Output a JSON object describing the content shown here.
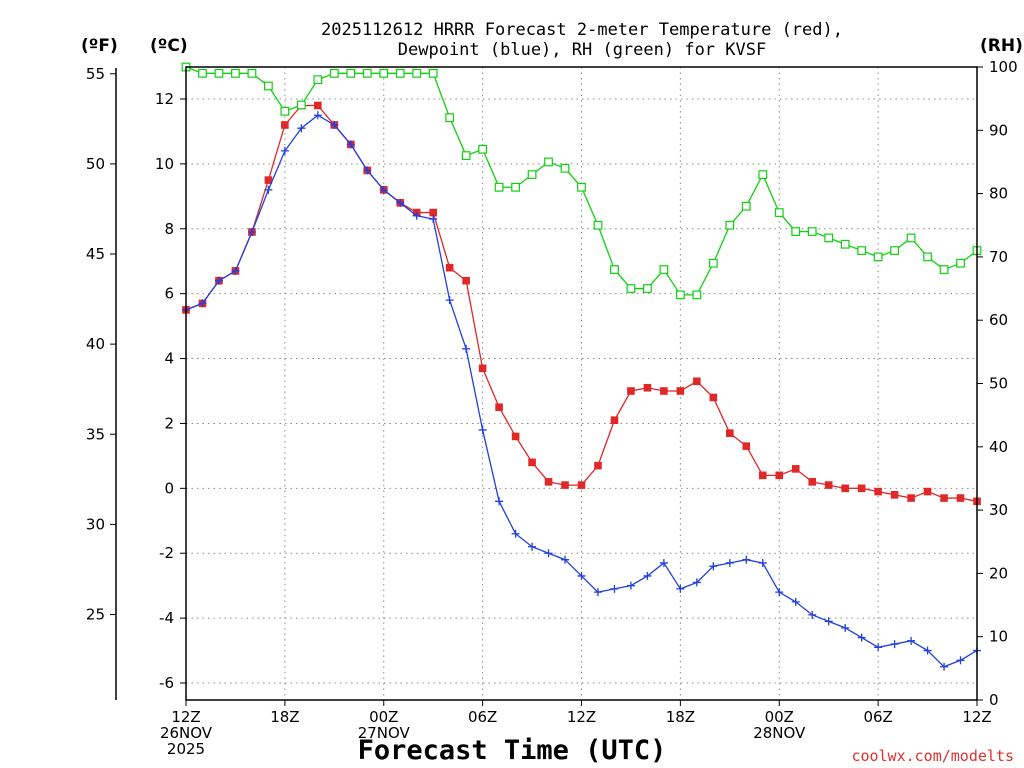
{
  "chart_data": {
    "type": "line",
    "title_line1": "2025112612 HRRR Forecast 2-meter Temperature (red),",
    "title_line2": "Dewpoint (blue), RH (green) for KVSF",
    "xlabel": "Forecast Time (UTC)",
    "credit": "coolwx.com/modelts",
    "left_axis_f_label": "(ºF)",
    "left_axis_c_label": "(ºC)",
    "right_axis_label": "(RH)",
    "x_hours_range": [
      0,
      48
    ],
    "x_ticks": [
      {
        "hour": 0,
        "lines": [
          "12Z",
          "26NOV",
          "2025"
        ]
      },
      {
        "hour": 6,
        "lines": [
          "18Z"
        ]
      },
      {
        "hour": 12,
        "lines": [
          "00Z",
          "27NOV"
        ]
      },
      {
        "hour": 18,
        "lines": [
          "06Z"
        ]
      },
      {
        "hour": 24,
        "lines": [
          "12Z"
        ]
      },
      {
        "hour": 30,
        "lines": [
          "18Z"
        ]
      },
      {
        "hour": 36,
        "lines": [
          "00Z",
          "28NOV"
        ]
      },
      {
        "hour": 42,
        "lines": [
          "06Z"
        ]
      },
      {
        "hour": 48,
        "lines": [
          "12Z"
        ]
      }
    ],
    "celsius_range": [
      -6.4,
      13.0
    ],
    "celsius_ticks": [
      "-6",
      "-4",
      "-2",
      "0",
      "2",
      "4",
      "6",
      "8",
      "10",
      "12"
    ],
    "fahrenheit_ticks": [
      "25",
      "30",
      "35",
      "40",
      "45",
      "50",
      "55"
    ],
    "rh_range": [
      0,
      100
    ],
    "rh_ticks": [
      "0",
      "10",
      "20",
      "30",
      "40",
      "50",
      "60",
      "70",
      "80",
      "90",
      "100"
    ],
    "series": [
      {
        "name": "Temperature",
        "unit": "C",
        "color": "#e02828",
        "marker": "square-filled",
        "values": [
          5.5,
          5.7,
          6.4,
          6.7,
          7.9,
          9.5,
          11.2,
          11.8,
          11.8,
          11.2,
          10.6,
          9.8,
          9.2,
          8.8,
          8.5,
          8.5,
          6.8,
          6.4,
          3.7,
          2.5,
          1.6,
          0.8,
          0.2,
          0.1,
          0.1,
          0.7,
          2.1,
          3.0,
          3.1,
          3.0,
          3.0,
          3.3,
          2.8,
          1.7,
          1.3,
          0.4,
          0.4,
          0.6,
          0.2,
          0.1,
          0.0,
          0.0,
          -0.1,
          -0.2,
          -0.3,
          -0.1,
          -0.3,
          -0.3,
          -0.4
        ]
      },
      {
        "name": "Dewpoint",
        "unit": "C",
        "color": "#2040e0",
        "marker": "plus",
        "values": [
          5.5,
          5.7,
          6.4,
          6.7,
          7.9,
          9.2,
          10.4,
          11.1,
          11.5,
          11.2,
          10.6,
          9.8,
          9.2,
          8.8,
          8.4,
          8.3,
          5.8,
          4.3,
          1.8,
          -0.4,
          -1.4,
          -1.8,
          -2.0,
          -2.2,
          -2.7,
          -3.2,
          -3.1,
          -3.0,
          -2.7,
          -2.3,
          -3.1,
          -2.9,
          -2.4,
          -2.3,
          -2.2,
          -2.3,
          -3.2,
          -3.5,
          -3.9,
          -4.1,
          -4.3,
          -4.6,
          -4.9,
          -4.8,
          -4.7,
          -5.0,
          -5.5,
          -5.3,
          -5.0
        ]
      },
      {
        "name": "RH",
        "unit": "%",
        "color": "#10d010",
        "marker": "square-open",
        "values": [
          100,
          99,
          99,
          99,
          99,
          97,
          93,
          94,
          98,
          99,
          99,
          99,
          99,
          99,
          99,
          99,
          92,
          86,
          87,
          81,
          81,
          83,
          85,
          84,
          81,
          75,
          68,
          65,
          65,
          68,
          64,
          64,
          69,
          75,
          78,
          83,
          77,
          74,
          74,
          73,
          72,
          71,
          70,
          71,
          73,
          70,
          68,
          69,
          71
        ]
      }
    ]
  }
}
